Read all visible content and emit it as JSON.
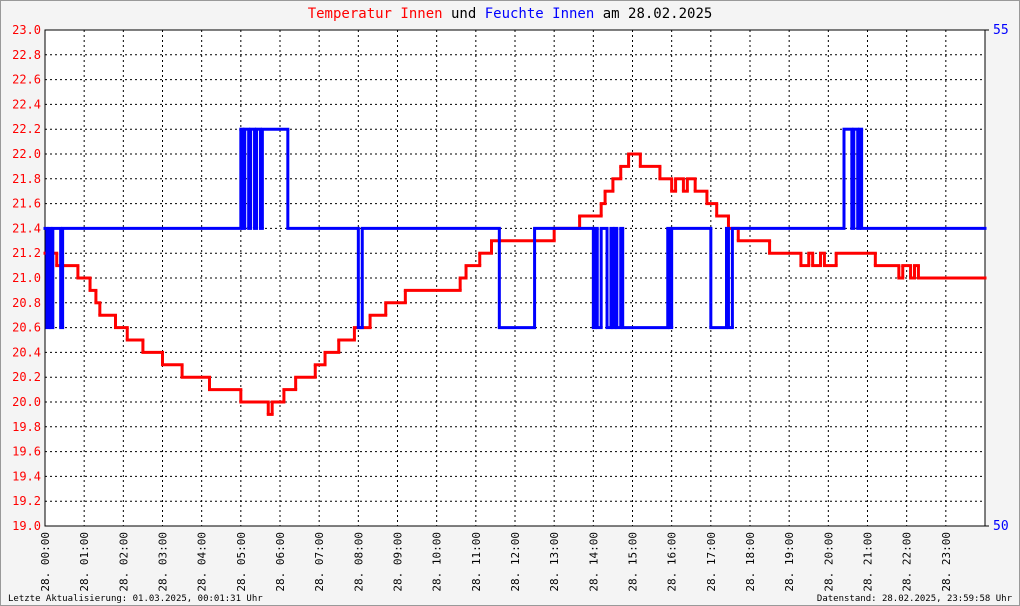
{
  "chart_data": {
    "type": "step",
    "title_connector": "und",
    "title_date": "am 28.02.2025",
    "footer_left": "Letzte Aktualisierung: 01.03.2025, 00:01:31 Uhr",
    "footer_right": "Datenstand: 28.02.2025, 23:59:58 Uhr",
    "grid": true,
    "xlim": [
      0,
      24
    ],
    "xticks": [
      {
        "value": 0,
        "label": "28. 00:00"
      },
      {
        "value": 1,
        "label": "28. 01:00"
      },
      {
        "value": 2,
        "label": "28. 02:00"
      },
      {
        "value": 3,
        "label": "28. 03:00"
      },
      {
        "value": 4,
        "label": "28. 04:00"
      },
      {
        "value": 5,
        "label": "28. 05:00"
      },
      {
        "value": 6,
        "label": "28. 06:00"
      },
      {
        "value": 7,
        "label": "28. 07:00"
      },
      {
        "value": 8,
        "label": "28. 08:00"
      },
      {
        "value": 9,
        "label": "28. 09:00"
      },
      {
        "value": 10,
        "label": "28. 10:00"
      },
      {
        "value": 11,
        "label": "28. 11:00"
      },
      {
        "value": 12,
        "label": "28. 12:00"
      },
      {
        "value": 13,
        "label": "28. 13:00"
      },
      {
        "value": 14,
        "label": "28. 14:00"
      },
      {
        "value": 15,
        "label": "28. 15:00"
      },
      {
        "value": 16,
        "label": "28. 16:00"
      },
      {
        "value": 17,
        "label": "28. 17:00"
      },
      {
        "value": 18,
        "label": "28. 18:00"
      },
      {
        "value": 19,
        "label": "28. 19:00"
      },
      {
        "value": 20,
        "label": "28. 20:00"
      },
      {
        "value": 21,
        "label": "28. 21:00"
      },
      {
        "value": 22,
        "label": "28. 22:00"
      },
      {
        "value": 23,
        "label": "28. 23:00"
      }
    ],
    "ylim": [
      19,
      23
    ],
    "yticks": [
      {
        "value": 19,
        "label": "19.0"
      },
      19.2,
      19.4,
      19.6,
      19.8,
      {
        "value": 20,
        "label": "20.0"
      },
      20.2,
      20.4,
      20.6,
      20.8,
      {
        "value": 21,
        "label": "21.0"
      },
      21.2,
      21.4,
      21.6,
      21.8,
      {
        "value": 22,
        "label": "22.0"
      },
      22.2,
      22.4,
      22.6,
      22.8,
      {
        "value": 23,
        "label": "23.0"
      }
    ],
    "y_color": "#ff0000",
    "y2lim": [
      50,
      55
    ],
    "y2ticks": [
      50,
      55
    ],
    "y2_color": "#0000ff",
    "series": [
      {
        "name": "Temperatur Innen",
        "color": "#ff0000",
        "x": [
          0,
          0.1,
          0.15,
          0.3,
          0.84,
          1.15,
          1.3,
          1.4,
          1.8,
          2.1,
          2.5,
          3.0,
          3.5,
          4.2,
          5.0,
          5.7,
          5.8,
          6.1,
          6.4,
          6.9,
          7.15,
          7.5,
          7.9,
          8.3,
          8.7,
          9.2,
          10.6,
          10.75,
          11.1,
          11.4,
          13.0,
          13.65,
          14.2,
          14.3,
          14.5,
          14.7,
          14.9,
          15.2,
          15.7,
          16.0,
          16.1,
          16.3,
          16.4,
          16.6,
          16.9,
          17.15,
          17.45,
          17.7,
          18.5,
          19.3,
          19.5,
          19.6,
          19.8,
          19.9,
          20.2,
          21.2,
          21.8,
          21.9,
          22.1,
          22.2,
          22.3
        ],
        "values": [
          21.2,
          21.1,
          21.2,
          21.1,
          21.0,
          20.9,
          20.8,
          20.7,
          20.6,
          20.5,
          20.4,
          20.3,
          20.2,
          20.1,
          20.0,
          19.9,
          20.0,
          20.1,
          20.2,
          20.3,
          20.4,
          20.5,
          20.6,
          20.7,
          20.8,
          20.9,
          21.0,
          21.1,
          21.2,
          21.3,
          21.4,
          21.5,
          21.6,
          21.7,
          21.8,
          21.9,
          22.0,
          21.9,
          21.8,
          21.7,
          21.8,
          21.7,
          21.8,
          21.7,
          21.6,
          21.5,
          21.4,
          21.3,
          21.2,
          21.1,
          21.2,
          21.1,
          21.2,
          21.1,
          21.2,
          21.1,
          21.0,
          21.1,
          21.0,
          21.1,
          21.0
        ]
      },
      {
        "name": "Feuchte Innen",
        "color": "#0000ff",
        "axis": "y2",
        "x": [
          0,
          0.05,
          0.1,
          0.15,
          0.2,
          0.4,
          0.45,
          5.0,
          5.05,
          5.1,
          5.2,
          5.25,
          5.35,
          5.4,
          5.5,
          5.55,
          6.2,
          8.0,
          8.1,
          11.6,
          12.5,
          14.0,
          14.05,
          14.1,
          14.2,
          14.35,
          14.45,
          14.5,
          14.55,
          14.6,
          14.7,
          14.75,
          15.9,
          15.95,
          16.0,
          17.0,
          17.4,
          17.45,
          17.55,
          20.4,
          20.6,
          20.65,
          20.75,
          20.8,
          20.85
        ],
        "values": [
          53,
          52,
          53,
          52,
          53,
          52,
          53,
          54,
          53,
          54,
          53,
          54,
          53,
          54,
          53,
          54,
          53,
          52,
          53,
          52,
          53,
          52,
          53,
          52,
          53,
          52,
          53,
          52,
          53,
          52,
          53,
          52,
          53,
          52,
          53,
          52,
          53,
          52,
          53,
          54,
          53,
          54,
          53,
          54,
          53
        ]
      }
    ]
  }
}
